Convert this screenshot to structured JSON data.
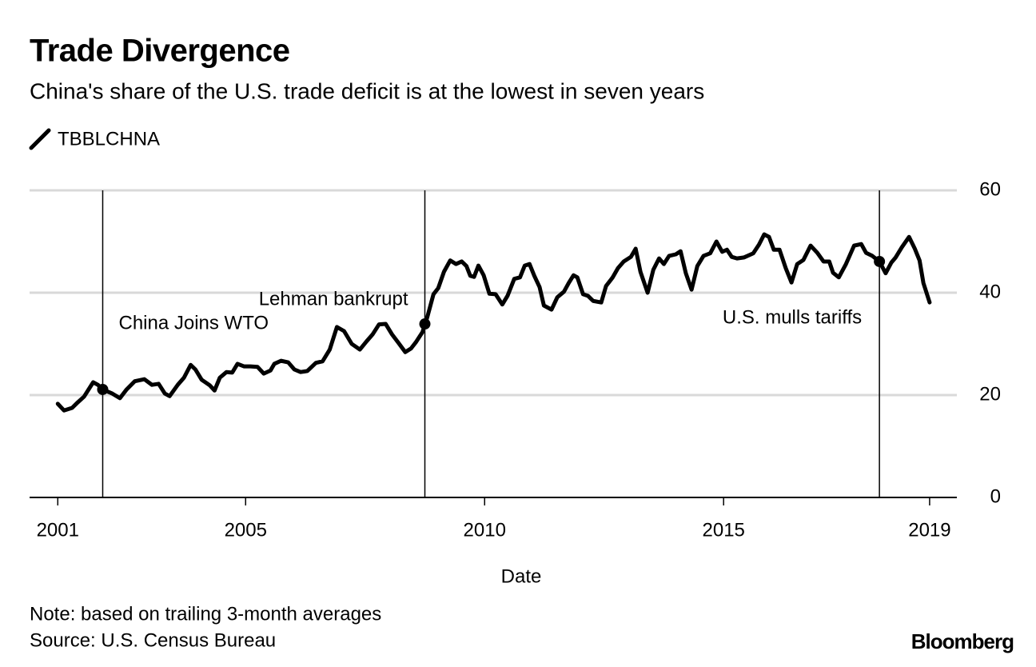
{
  "chart_data": {
    "type": "line",
    "title": "Trade Divergence",
    "subtitle": "China's share of the U.S. trade deficit is at the lowest in seven years",
    "xlabel": "Date",
    "note": "Note: based on trailing 3-month averages",
    "source": "Source: U.S. Census Bureau",
    "brand": "Bloomberg",
    "legend": "top-left",
    "grid": true,
    "xlim": [
      2000.48,
      2019.88
    ],
    "ylim": [
      0,
      60
    ],
    "xticks": [
      {
        "value": 2001.07,
        "label": "2001"
      },
      2005,
      2010,
      2015,
      {
        "value": 2019.31,
        "label": "2019"
      }
    ],
    "yticks": [
      0,
      20,
      40,
      60
    ],
    "annotations": [
      {
        "text": "China Joins WTO",
        "x": 2002.01,
        "y": 21.1
      },
      {
        "text": "Lehman bankrupt",
        "x": 2008.75,
        "y": 33.9
      },
      {
        "text": "U.S. mulls tariffs",
        "x": 2018.26,
        "y": 46.1
      }
    ],
    "x": [
      2001.07,
      2001.2,
      2001.37,
      2001.49,
      2001.62,
      2001.81,
      2001.91,
      2002.01,
      2002.21,
      2002.37,
      2002.51,
      2002.68,
      2002.88,
      2003.04,
      2003.18,
      2003.31,
      2003.41,
      2003.58,
      2003.71,
      2003.85,
      2003.95,
      2004.08,
      2004.25,
      2004.35,
      2004.46,
      2004.6,
      2004.72,
      2004.83,
      2004.97,
      2005.1,
      2005.25,
      2005.38,
      2005.52,
      2005.6,
      2005.74,
      2005.89,
      2006.02,
      2006.15,
      2006.29,
      2006.47,
      2006.61,
      2006.76,
      2006.91,
      2007.06,
      2007.22,
      2007.39,
      2007.53,
      2007.66,
      2007.79,
      2007.93,
      2008.06,
      2008.19,
      2008.34,
      2008.46,
      2008.56,
      2008.7,
      2008.8,
      2008.93,
      2009.03,
      2009.15,
      2009.28,
      2009.4,
      2009.52,
      2009.62,
      2009.7,
      2009.78,
      2009.87,
      2009.98,
      2010.1,
      2010.23,
      2010.37,
      2010.48,
      2010.62,
      2010.74,
      2010.84,
      2010.94,
      2011.04,
      2011.15,
      2011.24,
      2011.4,
      2011.52,
      2011.66,
      2011.76,
      2011.86,
      2011.94,
      2012.06,
      2012.16,
      2012.27,
      2012.44,
      2012.54,
      2012.68,
      2012.79,
      2012.91,
      2013.06,
      2013.16,
      2013.26,
      2013.41,
      2013.53,
      2013.65,
      2013.75,
      2013.86,
      2014.0,
      2014.1,
      2014.21,
      2014.33,
      2014.45,
      2014.58,
      2014.72,
      2014.85,
      2014.97,
      2015.07,
      2015.17,
      2015.28,
      2015.43,
      2015.62,
      2015.74,
      2015.85,
      2015.95,
      2016.05,
      2016.17,
      2016.3,
      2016.42,
      2016.54,
      2016.67,
      2016.82,
      2016.96,
      2017.09,
      2017.21,
      2017.29,
      2017.41,
      2017.56,
      2017.73,
      2017.88,
      2017.98,
      2018.11,
      2018.26,
      2018.39,
      2018.51,
      2018.6,
      2018.73,
      2018.88,
      2019.0,
      2019.1,
      2019.18,
      2019.31
    ],
    "series": [
      {
        "name": "TBBLCHNA",
        "color": "#000000",
        "values": [
          18.3,
          17.0,
          17.5,
          18.6,
          19.7,
          22.5,
          22.0,
          21.1,
          20.3,
          19.4,
          21.1,
          22.7,
          23.1,
          22.0,
          22.2,
          20.3,
          19.8,
          22.0,
          23.4,
          25.9,
          25.0,
          23.0,
          21.9,
          20.9,
          23.4,
          24.5,
          24.4,
          26.1,
          25.6,
          25.6,
          25.5,
          24.2,
          24.8,
          26.1,
          26.7,
          26.4,
          25.0,
          24.5,
          24.7,
          26.3,
          26.6,
          28.9,
          33.3,
          32.5,
          30.0,
          28.9,
          30.5,
          31.9,
          33.8,
          33.9,
          31.9,
          30.3,
          28.4,
          29.1,
          30.3,
          32.3,
          35.2,
          39.7,
          40.9,
          44.1,
          46.3,
          45.6,
          46.1,
          45.2,
          43.3,
          43.1,
          45.3,
          43.4,
          39.8,
          39.7,
          37.7,
          39.4,
          42.7,
          43.0,
          45.3,
          45.6,
          43.3,
          41.1,
          37.5,
          36.7,
          39.1,
          40.2,
          41.9,
          43.4,
          43.0,
          39.7,
          39.4,
          38.4,
          38.1,
          41.3,
          43.0,
          44.8,
          46.1,
          47.0,
          48.6,
          44.1,
          40.0,
          44.5,
          46.7,
          45.6,
          47.2,
          47.5,
          48.1,
          43.8,
          40.6,
          45.2,
          47.2,
          47.7,
          50.0,
          48.0,
          48.4,
          47.0,
          46.7,
          46.9,
          47.7,
          49.4,
          51.4,
          50.9,
          48.4,
          48.4,
          44.8,
          42.0,
          45.6,
          46.4,
          49.2,
          47.8,
          46.1,
          46.1,
          43.9,
          43.0,
          45.6,
          49.2,
          49.5,
          47.8,
          47.2,
          46.1,
          43.8,
          45.9,
          46.9,
          48.9,
          50.9,
          48.6,
          46.3,
          41.9,
          38.1
        ]
      }
    ]
  }
}
